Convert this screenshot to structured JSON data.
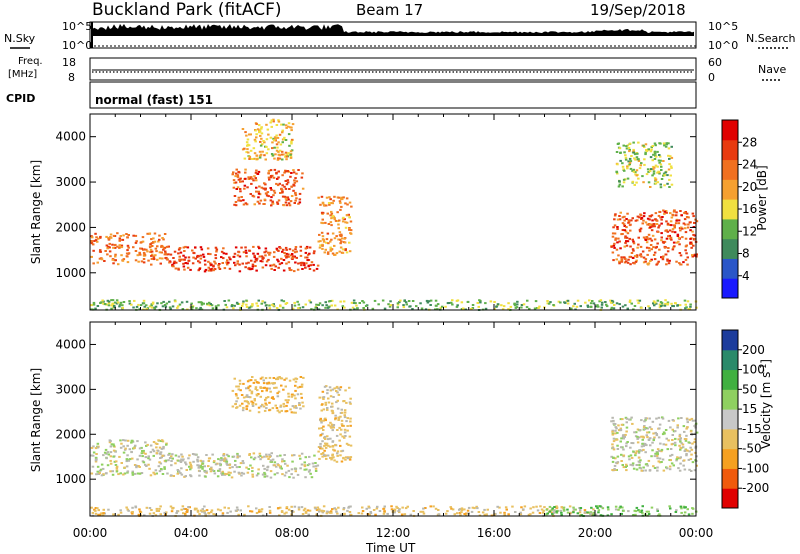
{
  "header": {
    "title": "Buckland Park (fitACF)",
    "beam": "Beam 17",
    "date": "19/Sep/2018"
  },
  "mode": {
    "cpid_text": "normal (fast) 151"
  },
  "labels": {
    "nsky": "N.Sky",
    "nsearch": "N.Search",
    "freq_line1": "Freq.",
    "freq_line2": "[MHz]",
    "nave": "Nave",
    "cpid": "CPID",
    "xlabel": "Time UT",
    "ylabel": "Slant Range [km]",
    "power_label": "Power [dB]",
    "velocity_label_main": "Velocity [m s",
    "velocity_label_exp": "-1",
    "velocity_label_end": "]"
  },
  "noise_axis": {
    "left_ticks": [
      "10^5",
      "10^0"
    ],
    "right_ticks": [
      "10^5",
      "10^0"
    ]
  },
  "freq_axis": {
    "left_ticks": [
      "18",
      "8"
    ],
    "right_ticks": [
      "60",
      "0"
    ]
  },
  "colors": {
    "power_scale": [
      "#1a1aff",
      "#2a56c8",
      "#3f8a5c",
      "#5fb04a",
      "#f0e040",
      "#f5a030",
      "#f07020",
      "#e83a10",
      "#e00000"
    ],
    "velocity_scale": [
      "#e00000",
      "#f05a0c",
      "#f5a020",
      "#e8c060",
      "#c8c8c8",
      "#8fd060",
      "#40b040",
      "#2a8a6a",
      "#1c3c9c"
    ],
    "ground_scatter": "#b8b8b0"
  },
  "chart_data": [
    {
      "type": "heatmap",
      "title": "Power",
      "xlabel": "Time UT",
      "ylabel": "Slant Range [km]",
      "x_ticks": [
        "00:00",
        "04:00",
        "08:00",
        "12:00",
        "16:00",
        "20:00",
        "00:00"
      ],
      "xlim_hours": [
        0,
        24
      ],
      "ylim": [
        180,
        4500
      ],
      "y_ticks": [
        1000,
        2000,
        3000,
        4000
      ],
      "colorbar": {
        "label": "Power [dB]",
        "ticks": [
          4,
          8,
          12,
          16,
          20,
          24,
          28
        ],
        "range": [
          0,
          32
        ]
      },
      "regions": [
        {
          "t_start": 0.0,
          "t_end": 3.0,
          "r_low": 1200,
          "r_high": 1900,
          "value": 24
        },
        {
          "t_start": 3.0,
          "t_end": 9.0,
          "r_low": 1050,
          "r_high": 1600,
          "value": 28
        },
        {
          "t_start": 9.0,
          "t_end": 10.3,
          "r_low": 1400,
          "r_high": 2700,
          "value": 22
        },
        {
          "t_start": 5.6,
          "t_end": 8.4,
          "r_low": 2500,
          "r_high": 3300,
          "value": 26
        },
        {
          "t_start": 6.0,
          "t_end": 8.0,
          "r_low": 3500,
          "r_high": 4400,
          "value": 18
        },
        {
          "t_start": 20.6,
          "t_end": 24.0,
          "r_low": 1200,
          "r_high": 2400,
          "value": 26
        },
        {
          "t_start": 20.8,
          "t_end": 23.0,
          "r_low": 2900,
          "r_high": 3900,
          "value": 14
        },
        {
          "t_start": 0.0,
          "t_end": 24.0,
          "r_low": 200,
          "r_high": 420,
          "value": 12
        }
      ]
    },
    {
      "type": "heatmap",
      "title": "Velocity",
      "xlabel": "Time UT",
      "ylabel": "Slant Range [km]",
      "x_ticks": [
        "00:00",
        "04:00",
        "08:00",
        "12:00",
        "16:00",
        "20:00",
        "00:00"
      ],
      "xlim_hours": [
        0,
        24
      ],
      "ylim": [
        180,
        4500
      ],
      "y_ticks": [
        1000,
        2000,
        3000,
        4000
      ],
      "colorbar": {
        "label": "Velocity [m s-1]",
        "ticks": [
          -200,
          -100,
          -50,
          -15,
          15,
          50,
          100,
          200
        ]
      },
      "regions": [
        {
          "t_start": 0.0,
          "t_end": 3.0,
          "r_low": 1100,
          "r_high": 1900,
          "value": 0
        },
        {
          "t_start": 3.0,
          "t_end": 9.0,
          "r_low": 1050,
          "r_high": 1600,
          "value": 0
        },
        {
          "t_start": 9.0,
          "t_end": 10.3,
          "r_low": 1400,
          "r_high": 3100,
          "value": -30
        },
        {
          "t_start": 5.6,
          "t_end": 8.4,
          "r_low": 2500,
          "r_high": 3300,
          "value": -40
        },
        {
          "t_start": 20.6,
          "t_end": 24.0,
          "r_low": 1200,
          "r_high": 2400,
          "value": 0
        },
        {
          "t_start": 0.0,
          "t_end": 20.0,
          "r_low": 200,
          "r_high": 420,
          "value": -30
        },
        {
          "t_start": 18.0,
          "t_end": 24.0,
          "r_low": 200,
          "r_high": 420,
          "value": 40
        }
      ]
    }
  ]
}
